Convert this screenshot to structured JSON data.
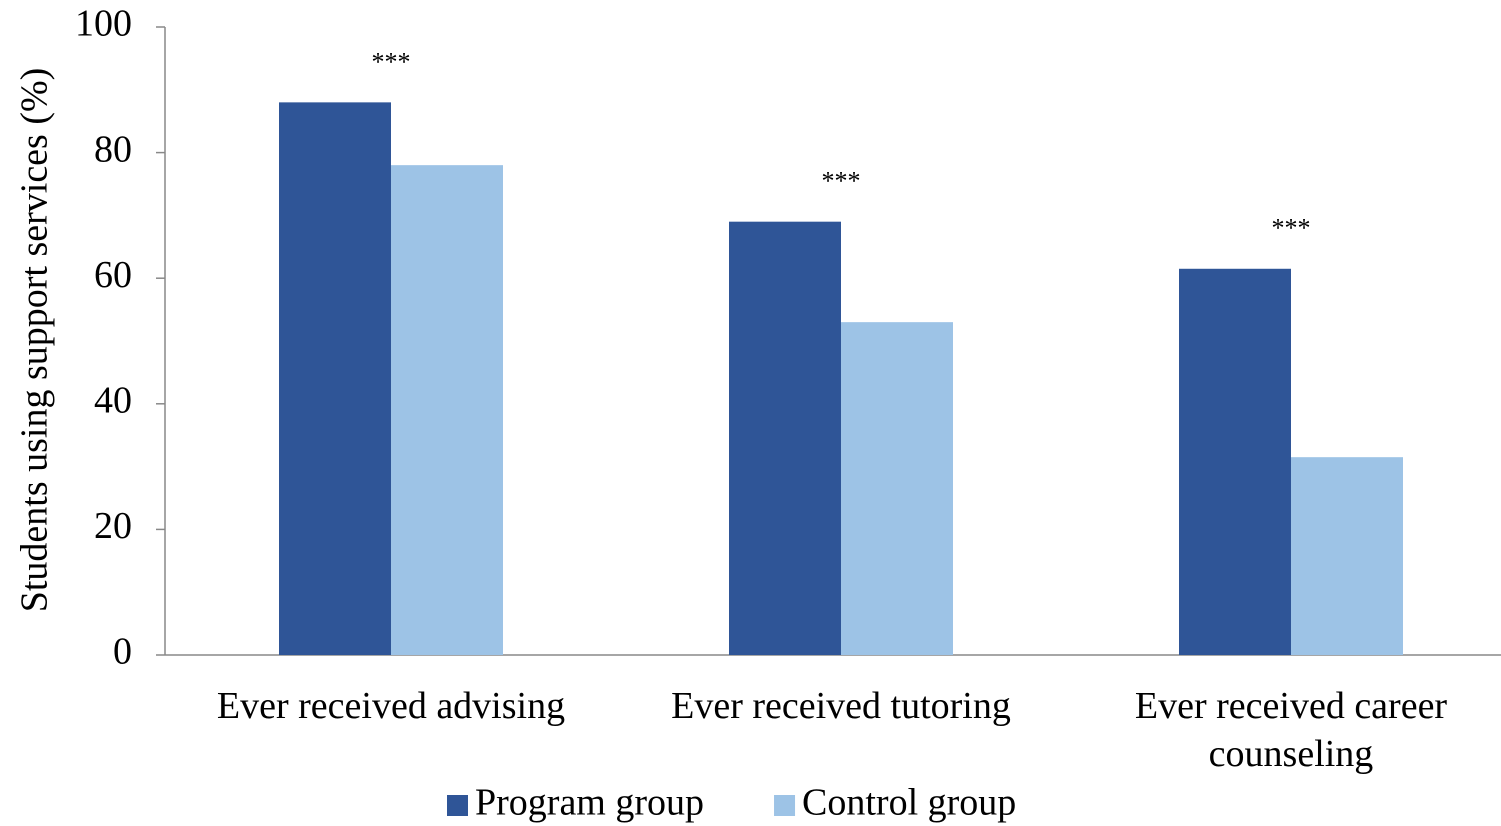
{
  "chart_data": {
    "type": "bar",
    "y_label": "Students using support services (%)",
    "categories": [
      "Ever received advising",
      "Ever received tutoring",
      "Ever received career counseling"
    ],
    "series": [
      {
        "name": "Program group",
        "color": "#2f5597",
        "values": [
          88,
          69,
          61.5
        ]
      },
      {
        "name": "Control group",
        "color": "#9dc3e6",
        "values": [
          78,
          53,
          31.5
        ]
      }
    ],
    "annotations": [
      "***",
      "***",
      "***"
    ],
    "ylim": [
      0,
      100
    ],
    "yticks": [
      0,
      20,
      40,
      60,
      80,
      100
    ],
    "grid": false,
    "legend": "bottom"
  }
}
